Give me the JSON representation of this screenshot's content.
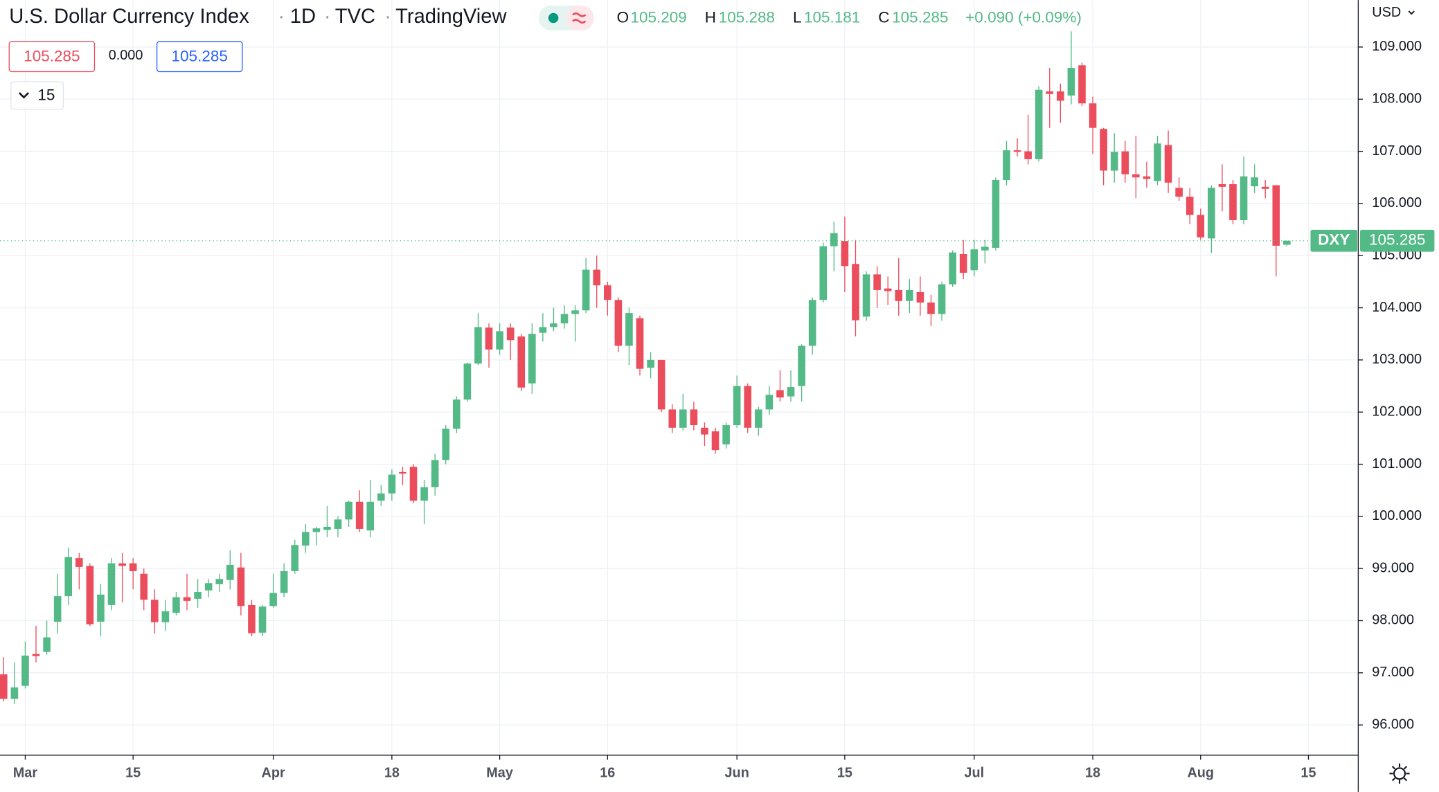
{
  "chart_data": {
    "type": "candlestick",
    "title": "U.S. Dollar Currency Index",
    "interval": "1D",
    "exchange": "TVC",
    "source": "TradingView",
    "ohlc_labels": [
      "O",
      "H",
      "L",
      "C"
    ],
    "change": "+0.090 (+0.09%)",
    "bid": "105.285",
    "spread": "0.000",
    "ask": "105.285",
    "interval_control": "15",
    "currency": "USD",
    "symbol": "DXY",
    "up_color": "#53b987",
    "down_color": "#eb4d5c",
    "categories": [
      null,
      null,
      "Mar",
      null,
      null,
      null,
      null,
      null,
      null,
      null,
      null,
      null,
      "15",
      null,
      null,
      null,
      null,
      null,
      null,
      null,
      null,
      null,
      null,
      null,
      null,
      "Apr",
      null,
      null,
      null,
      null,
      null,
      null,
      null,
      null,
      null,
      null,
      "18",
      null,
      null,
      null,
      null,
      null,
      null,
      null,
      null,
      null,
      "May",
      null,
      null,
      null,
      null,
      null,
      null,
      null,
      null,
      null,
      "16",
      null,
      null,
      null,
      null,
      null,
      null,
      null,
      null,
      null,
      null,
      null,
      "Jun",
      null,
      null,
      null,
      null,
      null,
      null,
      null,
      null,
      null,
      "15",
      null,
      null,
      null,
      null,
      null,
      null,
      null,
      null,
      null,
      null,
      null,
      "Jul",
      null,
      null,
      null,
      null,
      null,
      null,
      null,
      null,
      null,
      null,
      "18",
      null,
      null,
      null,
      null,
      null,
      null,
      null,
      null,
      null,
      "Aug",
      null,
      null,
      null,
      null,
      null,
      null,
      null,
      null,
      null,
      "15"
    ],
    "open": [
      96.97,
      96.5,
      96.75,
      97.36,
      97.4,
      97.98,
      98.47,
      99.2,
      99.05,
      97.98,
      98.3,
      99.1,
      99.1,
      98.9,
      98.4,
      97.97,
      98.15,
      98.45,
      98.42,
      98.58,
      98.7,
      98.78,
      99.02,
      98.3,
      97.77,
      98.28,
      98.53,
      98.95,
      99.44,
      99.7,
      99.74,
      99.76,
      99.94,
      100.28,
      99.73,
      100.3,
      100.44,
      100.85,
      100.95,
      100.3,
      100.56,
      101.08,
      101.68,
      102.24,
      102.93,
      103.62,
      103.2,
      103.62,
      103.45,
      102.55,
      103.52,
      103.63,
      103.7,
      103.88,
      103.95,
      104.73,
      104.43,
      104.15,
      103.27,
      103.8,
      102.85,
      103.0,
      102.05,
      101.7,
      102.05,
      101.7,
      101.63,
      101.38,
      101.75,
      102.5,
      101.7,
      102.05,
      102.42,
      102.3,
      102.5,
      103.27,
      104.15,
      105.18,
      105.28,
      104.84,
      103.83,
      104.64,
      104.37,
      104.34,
      104.13,
      104.3,
      104.1,
      103.88,
      104.45,
      105.03,
      104.72,
      105.1,
      105.15,
      106.45,
      107.02,
      107.0,
      106.85,
      108.15,
      108.15,
      108.07,
      108.65,
      107.92,
      107.43,
      106.63,
      107.0,
      106.56,
      106.52,
      106.43,
      107.12,
      106.3,
      106.13,
      105.78,
      105.33,
      106.37,
      106.37,
      105.68,
      106.33,
      106.32,
      106.35,
      105.209,
      null,
      null
    ],
    "high": [
      97.3,
      97.2,
      97.6,
      97.9,
      98.0,
      98.9,
      99.4,
      99.3,
      99.1,
      98.7,
      99.2,
      99.3,
      99.2,
      99.0,
      98.6,
      98.4,
      98.55,
      98.9,
      98.8,
      98.8,
      98.9,
      99.35,
      99.3,
      98.4,
      98.3,
      98.9,
      99.1,
      99.55,
      99.85,
      99.8,
      100.2,
      100.0,
      100.3,
      100.5,
      100.7,
      100.6,
      100.9,
      100.95,
      101.0,
      100.7,
      101.2,
      101.75,
      102.3,
      102.95,
      103.9,
      103.7,
      103.7,
      103.7,
      103.5,
      103.7,
      103.9,
      104.0,
      104.05,
      104.05,
      104.95,
      105.0,
      104.5,
      104.2,
      104.0,
      103.85,
      103.15,
      103.0,
      102.15,
      102.35,
      102.2,
      101.8,
      101.7,
      101.8,
      102.7,
      102.55,
      102.1,
      102.5,
      102.8,
      102.8,
      103.3,
      104.2,
      105.25,
      105.65,
      105.75,
      105.3,
      104.7,
      104.8,
      104.6,
      104.95,
      104.55,
      104.6,
      104.25,
      104.5,
      105.1,
      105.3,
      105.3,
      105.3,
      106.5,
      107.2,
      107.25,
      107.7,
      108.25,
      108.6,
      108.3,
      109.3,
      108.7,
      108.05,
      107.45,
      107.35,
      107.2,
      107.3,
      106.8,
      107.3,
      107.4,
      106.5,
      106.3,
      105.9,
      106.35,
      106.75,
      106.45,
      106.9,
      106.75,
      106.45,
      106.35,
      105.288,
      null,
      null
    ],
    "low": [
      96.45,
      96.4,
      96.7,
      97.2,
      97.35,
      97.75,
      98.3,
      98.6,
      97.9,
      97.7,
      98.2,
      98.35,
      98.6,
      98.2,
      97.75,
      97.8,
      98.1,
      98.2,
      98.25,
      98.45,
      98.55,
      98.6,
      98.1,
      97.7,
      97.7,
      98.25,
      98.45,
      98.9,
      99.3,
      99.45,
      99.6,
      99.6,
      99.8,
      99.7,
      99.6,
      100.2,
      100.3,
      100.6,
      100.25,
      99.85,
      100.4,
      101.0,
      101.6,
      102.2,
      102.9,
      102.85,
      103.1,
      103.0,
      102.4,
      102.35,
      103.35,
      103.55,
      103.6,
      103.35,
      103.9,
      104.0,
      103.85,
      103.15,
      102.9,
      102.7,
      102.65,
      102.0,
      101.6,
      101.65,
      101.65,
      101.35,
      101.2,
      101.3,
      101.7,
      101.6,
      101.55,
      101.95,
      102.2,
      102.2,
      102.2,
      103.1,
      104.1,
      104.7,
      104.3,
      103.45,
      103.75,
      104.0,
      104.05,
      103.85,
      103.9,
      103.85,
      103.65,
      103.75,
      104.4,
      104.55,
      104.6,
      104.85,
      105.1,
      106.35,
      106.9,
      106.75,
      106.8,
      107.45,
      107.55,
      107.9,
      107.87,
      106.95,
      106.35,
      106.4,
      106.4,
      106.1,
      106.3,
      106.35,
      106.2,
      106.05,
      105.6,
      105.3,
      105.05,
      105.85,
      105.6,
      105.6,
      106.2,
      106.1,
      104.6,
      105.181,
      null,
      null
    ],
    "close": [
      96.5,
      96.72,
      97.33,
      97.32,
      97.68,
      98.47,
      99.22,
      99.03,
      97.93,
      98.5,
      99.1,
      99.05,
      98.95,
      98.4,
      97.97,
      98.18,
      98.45,
      98.38,
      98.55,
      98.72,
      98.8,
      99.07,
      98.28,
      97.76,
      98.27,
      98.53,
      98.95,
      99.45,
      99.7,
      99.77,
      99.8,
      99.94,
      100.28,
      99.76,
      100.28,
      100.44,
      100.8,
      100.82,
      100.3,
      100.56,
      101.08,
      101.68,
      102.24,
      102.93,
      103.63,
      103.2,
      103.55,
      103.38,
      102.47,
      103.5,
      103.63,
      103.7,
      103.88,
      103.95,
      104.73,
      104.43,
      104.15,
      103.27,
      103.9,
      102.83,
      103.0,
      102.05,
      101.7,
      102.05,
      101.75,
      101.57,
      101.27,
      101.75,
      102.5,
      101.7,
      102.05,
      102.33,
      102.28,
      102.48,
      103.27,
      104.15,
      105.18,
      105.43,
      104.8,
      103.76,
      104.64,
      104.34,
      104.32,
      104.13,
      104.34,
      104.1,
      103.88,
      104.45,
      105.06,
      104.67,
      105.12,
      105.17,
      106.45,
      107.02,
      106.99,
      106.85,
      108.18,
      108.1,
      107.97,
      108.6,
      107.92,
      107.45,
      106.63,
      106.99,
      106.56,
      106.5,
      106.47,
      107.15,
      106.4,
      106.13,
      105.78,
      105.35,
      106.3,
      106.32,
      105.68,
      106.52,
      106.5,
      106.28,
      105.19,
      105.285,
      null,
      null
    ],
    "ylim": [
      95.42,
      109.9
    ],
    "yticks": [
      {
        "value": 96,
        "label": "96.000"
      },
      {
        "value": 97,
        "label": "97.000"
      },
      {
        "value": 98,
        "label": "98.000"
      },
      {
        "value": 99,
        "label": "99.000"
      },
      {
        "value": 100,
        "label": "100.000"
      },
      {
        "value": 101,
        "label": "101.000"
      },
      {
        "value": 102,
        "label": "102.000"
      },
      {
        "value": 103,
        "label": "103.000"
      },
      {
        "value": 104,
        "label": "104.000"
      },
      {
        "value": 105,
        "label": "105.000"
      },
      {
        "value": 106,
        "label": "106.000"
      },
      {
        "value": 107,
        "label": "107.000"
      },
      {
        "value": 108,
        "label": "108.000"
      },
      {
        "value": 109,
        "label": "109.000"
      }
    ],
    "grid": true
  }
}
